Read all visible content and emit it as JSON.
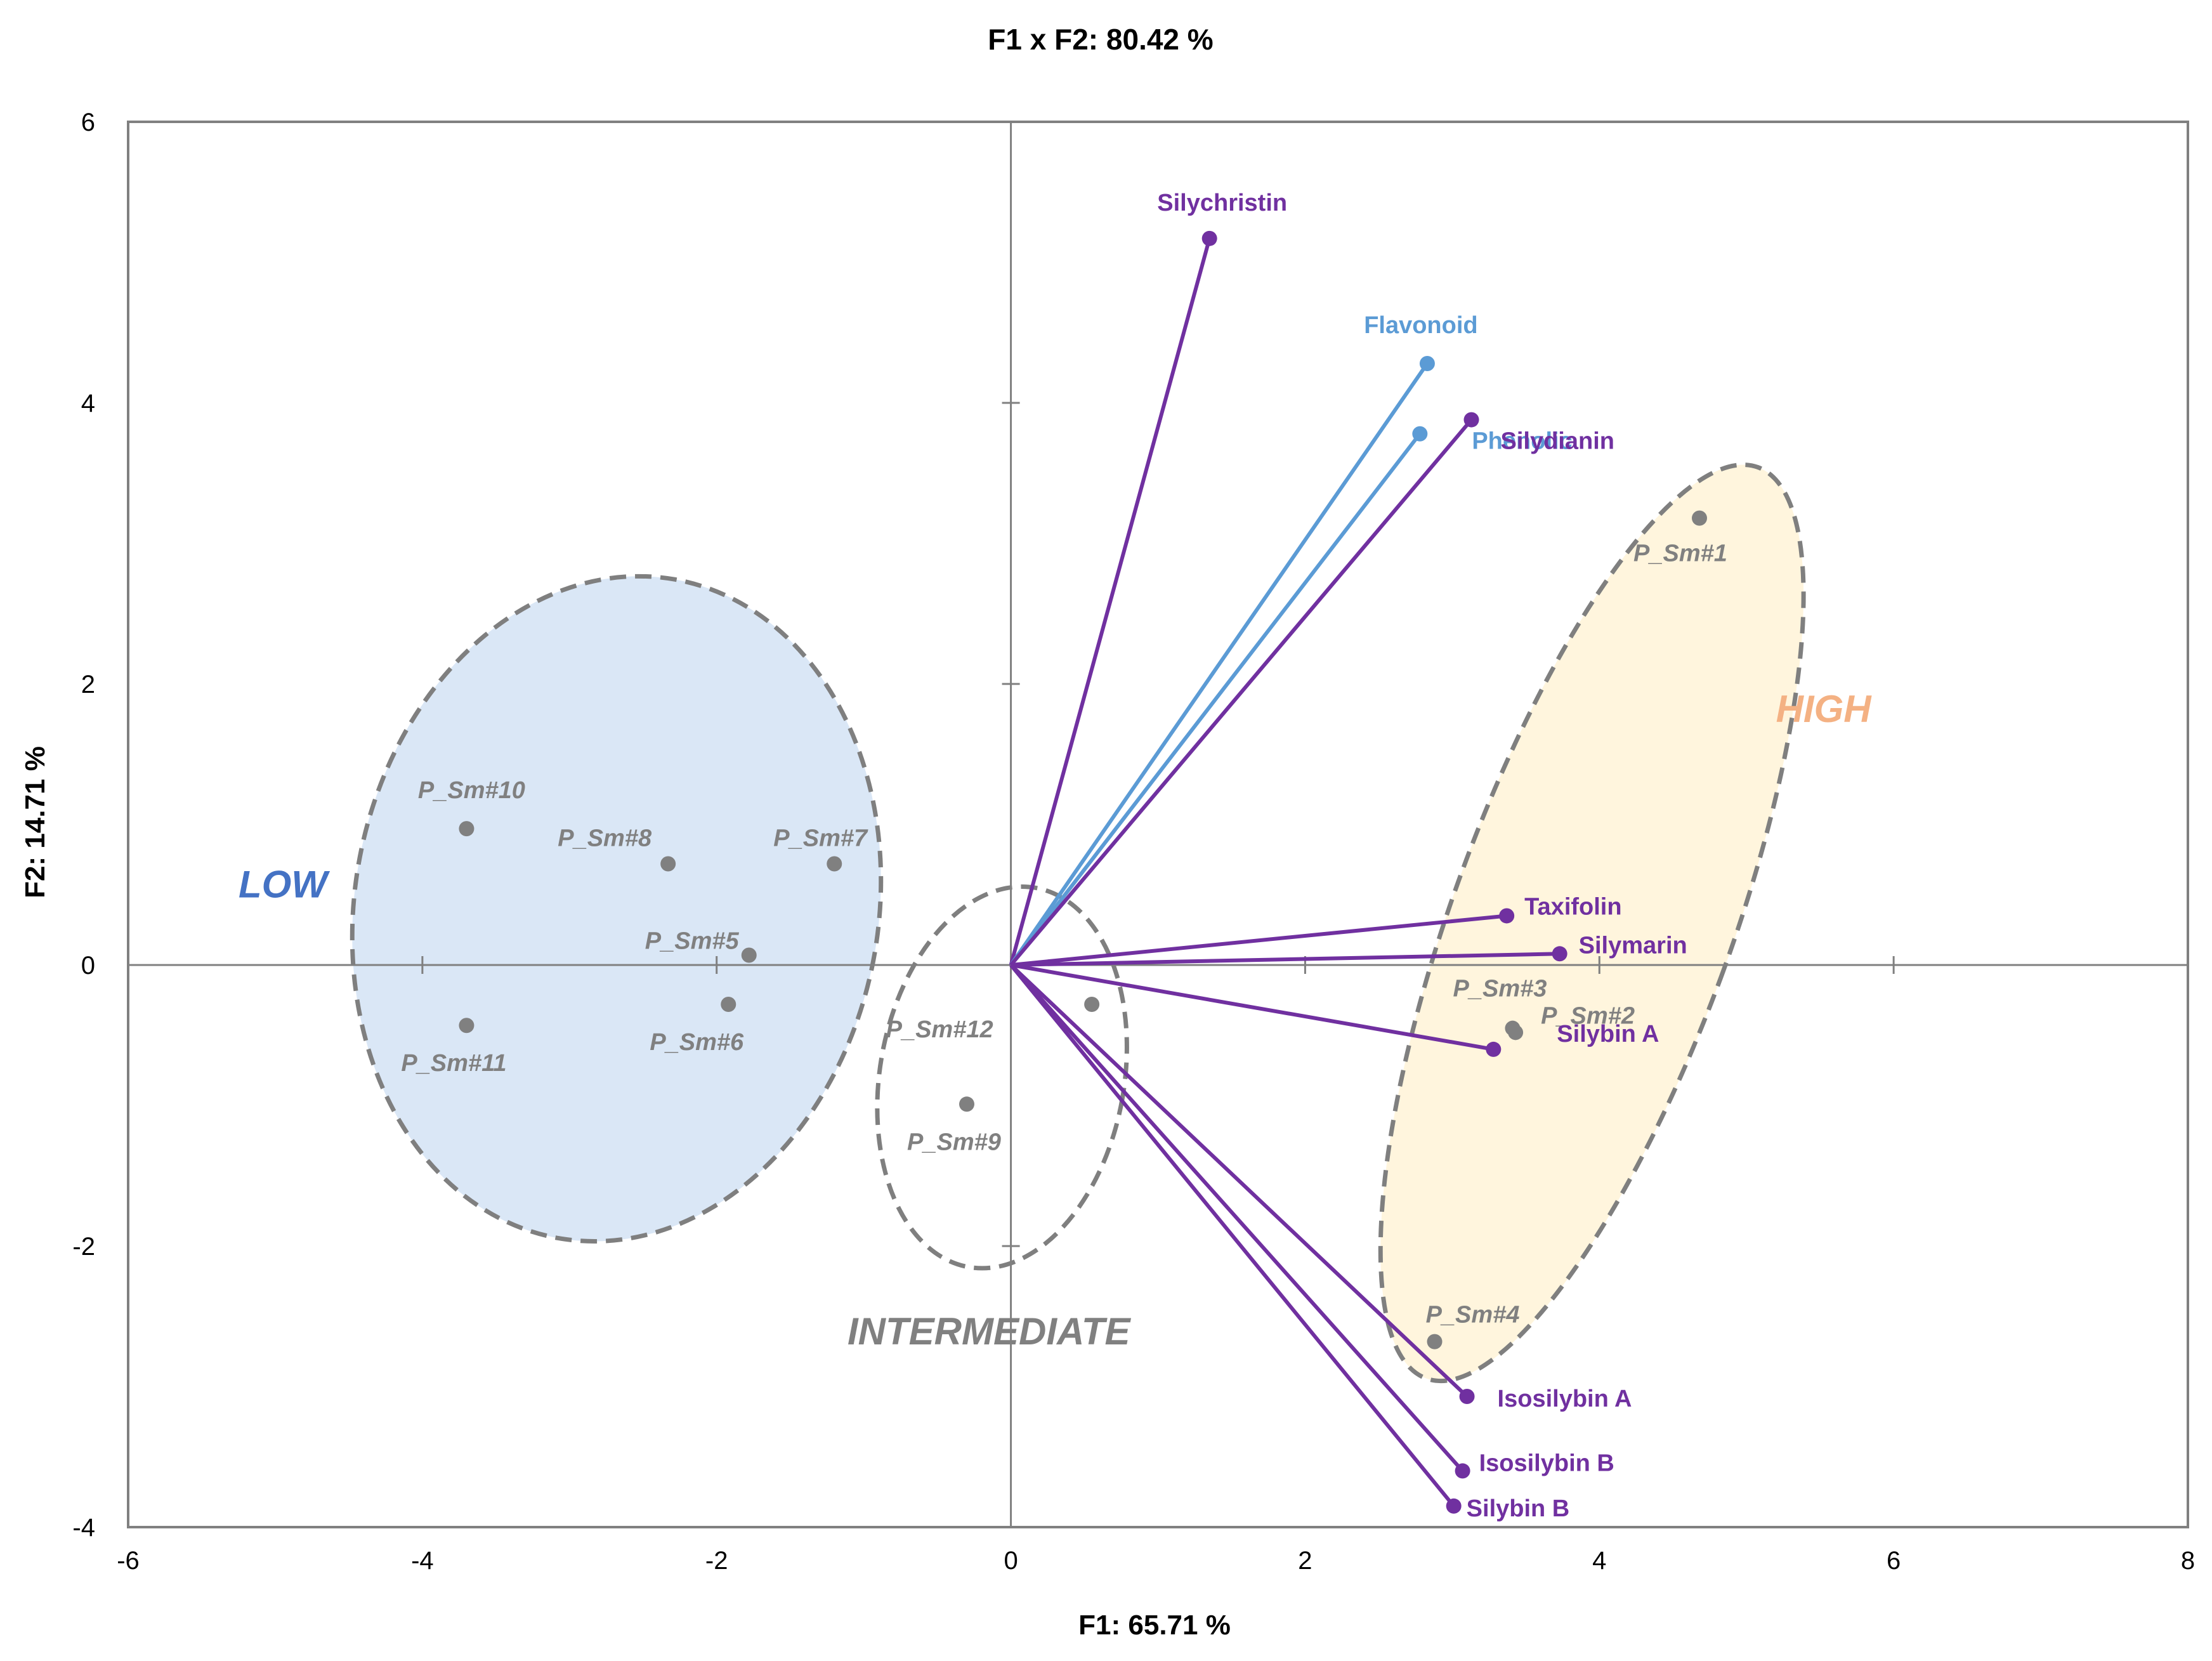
{
  "chart_data": {
    "type": "scatter",
    "title": "F1 x F2: 80.42 %",
    "xlabel": "F1: 65.71 %",
    "ylabel": "F2: 14.71 %",
    "xlim": [
      -6,
      8
    ],
    "ylim": [
      -4,
      6
    ],
    "xticks": [
      "-6",
      "-4",
      "-2",
      "0",
      "2",
      "4",
      "6",
      "8"
    ],
    "yticks": [
      "-4",
      "-2",
      "0",
      "2",
      "4",
      "6"
    ],
    "grid": false,
    "colors": {
      "observation": "#808080",
      "compound_vector": "#7030a0",
      "total_vector": "#5b9bd5",
      "low": "#4472c4",
      "intermediate": "#808080",
      "high": "#f4b183",
      "low_fill": "#dae7f6",
      "high_fill": "#fff5dd"
    },
    "observations": [
      {
        "label": "P_Sm#1",
        "x": 4.68,
        "y": 3.18
      },
      {
        "label": "P_Sm#2",
        "x": 3.43,
        "y": -0.48
      },
      {
        "label": "P_Sm#3",
        "x": 3.41,
        "y": -0.45
      },
      {
        "label": "P_Sm#4",
        "x": 2.88,
        "y": -2.68
      },
      {
        "label": "P_Sm#5",
        "x": -1.78,
        "y": 0.07
      },
      {
        "label": "P_Sm#6",
        "x": -1.92,
        "y": -0.28
      },
      {
        "label": "P_Sm#7",
        "x": -1.2,
        "y": 0.72
      },
      {
        "label": "P_Sm#8",
        "x": -2.33,
        "y": 0.72
      },
      {
        "label": "P_Sm#9",
        "x": -0.3,
        "y": -0.99
      },
      {
        "label": "P_Sm#10",
        "x": -3.7,
        "y": 0.97
      },
      {
        "label": "P_Sm#11",
        "x": -3.7,
        "y": -0.43
      },
      {
        "label": "P_Sm#12",
        "x": 0.55,
        "y": -0.28
      }
    ],
    "variables": [
      {
        "label": "Silychristin",
        "x": 1.35,
        "y": 5.17,
        "group": "compound"
      },
      {
        "label": "Flavonoid",
        "x": 2.83,
        "y": 4.28,
        "group": "total"
      },
      {
        "label": "Phenolic",
        "x": 2.78,
        "y": 3.78,
        "group": "total"
      },
      {
        "label": "Silydianin",
        "x": 3.13,
        "y": 3.88,
        "group": "compound"
      },
      {
        "label": "Taxifolin",
        "x": 3.37,
        "y": 0.35,
        "group": "compound"
      },
      {
        "label": "Silymarin",
        "x": 3.73,
        "y": 0.08,
        "group": "compound"
      },
      {
        "label": "Silybin A",
        "x": 3.28,
        "y": -0.6,
        "group": "compound"
      },
      {
        "label": "Isosilybin A",
        "x": 3.1,
        "y": -3.07,
        "group": "compound"
      },
      {
        "label": "Isosilybin B",
        "x": 3.07,
        "y": -3.6,
        "group": "compound"
      },
      {
        "label": "Silybin B",
        "x": 3.01,
        "y": -3.85,
        "group": "compound"
      }
    ],
    "groups": [
      {
        "label": "LOW",
        "cx": -2.68,
        "cy": 0.4,
        "rx": 1.78,
        "ry": 2.38,
        "rot": 10,
        "filled": true
      },
      {
        "label": "INTERMEDIATE",
        "cx": -0.06,
        "cy": -0.8,
        "rx": 0.83,
        "ry": 1.37,
        "rot": 10,
        "filled": false
      },
      {
        "label": "HIGH",
        "cx": 3.95,
        "cy": 0.3,
        "rx": 0.95,
        "ry": 3.45,
        "rot": 20,
        "filled": true
      }
    ]
  }
}
